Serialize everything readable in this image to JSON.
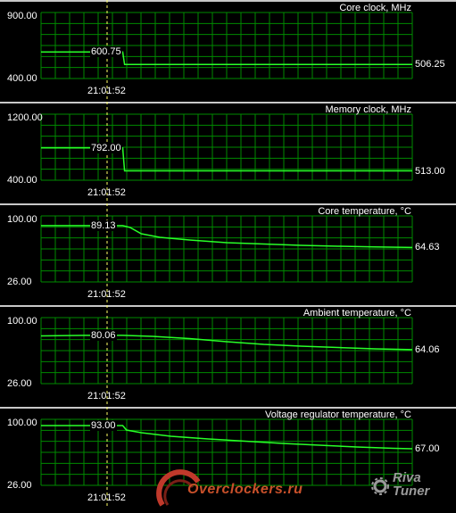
{
  "colors": {
    "grid": "#008a00",
    "line": "#28ff28",
    "marker": "#ffff66",
    "separator": "#c8c8c8",
    "background": "#000000"
  },
  "marker_time": "21:01:52",
  "panels": [
    {
      "title": "Core clock, MHz",
      "ymax_label": "900.00",
      "ymin_label": "400.00",
      "ymin": 400,
      "ymax": 900,
      "marker_value": "600.75",
      "current_value": "506.25",
      "series": [
        [
          0,
          600.75
        ],
        [
          0.22,
          600.75
        ],
        [
          0.225,
          506.25
        ],
        [
          1,
          506.25
        ]
      ]
    },
    {
      "title": "Memory clock, MHz",
      "ymax_label": "1200.00",
      "ymin_label": "400.00",
      "ymin": 400,
      "ymax": 1200,
      "marker_value": "792.00",
      "current_value": "513.00",
      "series": [
        [
          0,
          792
        ],
        [
          0.22,
          792
        ],
        [
          0.225,
          513
        ],
        [
          1,
          513
        ]
      ]
    },
    {
      "title": "Core temperature, °C",
      "ymax_label": "100.00",
      "ymin_label": "26.00",
      "ymin": 26,
      "ymax": 100,
      "marker_value": "89.13",
      "current_value": "64.63",
      "series": [
        [
          0,
          89.13
        ],
        [
          0.22,
          89.13
        ],
        [
          0.24,
          87
        ],
        [
          0.27,
          80
        ],
        [
          0.32,
          76
        ],
        [
          0.4,
          73
        ],
        [
          0.5,
          70
        ],
        [
          0.6,
          68.5
        ],
        [
          0.7,
          67
        ],
        [
          0.8,
          66
        ],
        [
          0.9,
          65.2
        ],
        [
          1,
          64.63
        ]
      ]
    },
    {
      "title": "Ambient temperature, °C",
      "ymax_label": "100.00",
      "ymin_label": "26.00",
      "ymin": 26,
      "ymax": 100,
      "marker_value": "80.06",
      "current_value": "64.06",
      "series": [
        [
          0,
          79.5
        ],
        [
          0.12,
          80.06
        ],
        [
          0.22,
          80.06
        ],
        [
          0.3,
          79
        ],
        [
          0.4,
          76.5
        ],
        [
          0.5,
          73
        ],
        [
          0.6,
          70
        ],
        [
          0.7,
          68
        ],
        [
          0.8,
          66.5
        ],
        [
          0.9,
          65
        ],
        [
          1,
          64.06
        ]
      ]
    },
    {
      "title": "Voltage regulator temperature, °C",
      "ymax_label": "100.00",
      "ymin_label": "26.00",
      "ymin": 26,
      "ymax": 100,
      "marker_value": "93.00",
      "current_value": "67.00",
      "series": [
        [
          0,
          93
        ],
        [
          0.22,
          93
        ],
        [
          0.23,
          88
        ],
        [
          0.27,
          85
        ],
        [
          0.35,
          81
        ],
        [
          0.45,
          78
        ],
        [
          0.55,
          75.5
        ],
        [
          0.65,
          73
        ],
        [
          0.75,
          71
        ],
        [
          0.85,
          69
        ],
        [
          0.95,
          67.5
        ],
        [
          1,
          67
        ]
      ]
    }
  ],
  "watermark": {
    "site": "Overclockers.ru",
    "tool": "Riva Tuner"
  }
}
